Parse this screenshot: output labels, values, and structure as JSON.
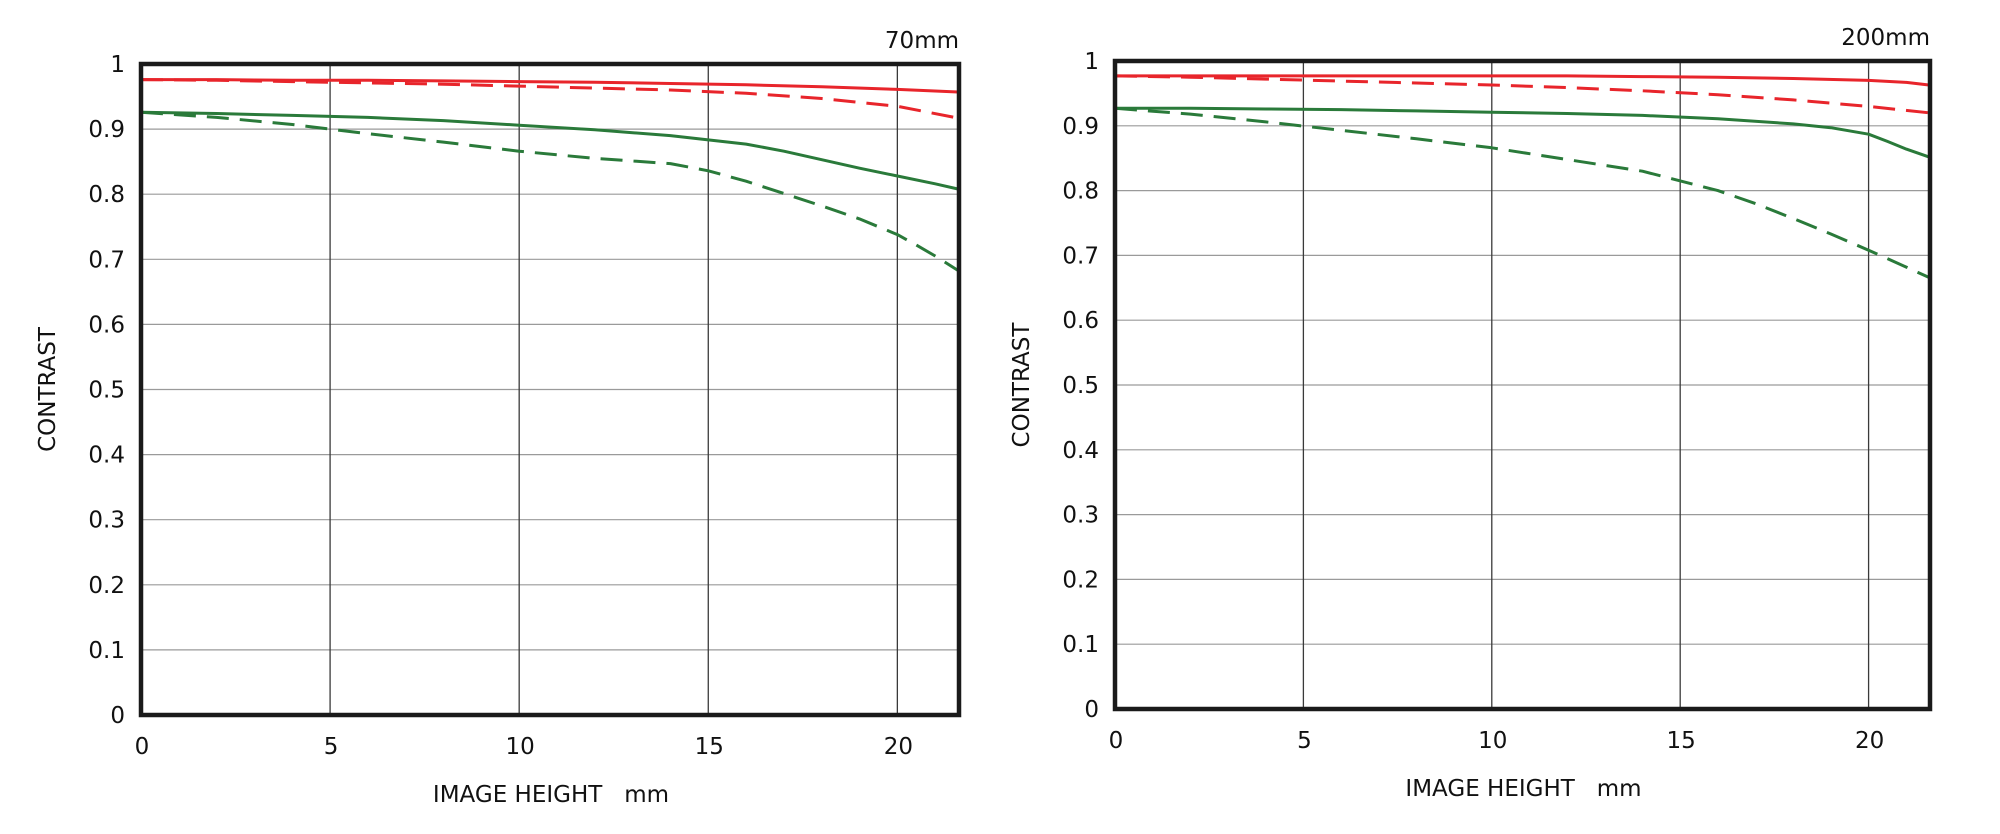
{
  "chart_data": [
    {
      "type": "line",
      "title": "70mm",
      "xlabel": "IMAGE HEIGHT   mm",
      "ylabel": "CONTRAST",
      "xlim": [
        0,
        21.63
      ],
      "ylim": [
        0,
        1
      ],
      "x_ticks": [
        "0",
        "5",
        "10",
        "15",
        "20"
      ],
      "y_ticks": [
        "0",
        "0.1",
        "0.2",
        "0.3",
        "0.4",
        "0.5",
        "0.6",
        "0.7",
        "0.8",
        "0.9",
        "1"
      ],
      "grid": true,
      "series": [
        {
          "color": "#e8252b",
          "style": "solid",
          "x": [
            0,
            2,
            4,
            6,
            8,
            10,
            12,
            14,
            16,
            18,
            20,
            21.6
          ],
          "y": [
            0.976,
            0.976,
            0.975,
            0.975,
            0.974,
            0.973,
            0.972,
            0.97,
            0.968,
            0.965,
            0.961,
            0.957
          ]
        },
        {
          "color": "#e8252b",
          "style": "dashed",
          "x": [
            0,
            2,
            4,
            6,
            8,
            10,
            12,
            14,
            16,
            18,
            20,
            21.6
          ],
          "y": [
            0.976,
            0.975,
            0.973,
            0.971,
            0.969,
            0.966,
            0.963,
            0.96,
            0.955,
            0.947,
            0.935,
            0.917
          ]
        },
        {
          "color": "#2a7a3a",
          "style": "solid",
          "x": [
            0,
            2,
            4,
            6,
            8,
            10,
            12,
            14,
            16,
            17,
            18,
            19,
            20,
            21,
            21.6
          ],
          "y": [
            0.926,
            0.924,
            0.921,
            0.918,
            0.913,
            0.906,
            0.899,
            0.89,
            0.877,
            0.866,
            0.853,
            0.84,
            0.828,
            0.816,
            0.808
          ]
        },
        {
          "color": "#2a7a3a",
          "style": "dashed",
          "x": [
            0,
            2,
            4,
            6,
            8,
            10,
            12,
            14,
            15,
            16,
            17,
            18,
            19,
            20,
            20.5,
            21,
            21.6
          ],
          "y": [
            0.926,
            0.918,
            0.907,
            0.893,
            0.88,
            0.866,
            0.855,
            0.847,
            0.836,
            0.82,
            0.801,
            0.782,
            0.762,
            0.738,
            0.722,
            0.705,
            0.683
          ]
        }
      ]
    },
    {
      "type": "line",
      "title": "200mm",
      "xlabel": "IMAGE HEIGHT   mm",
      "ylabel": "CONTRAST",
      "xlim": [
        0,
        21.63
      ],
      "ylim": [
        0,
        1
      ],
      "x_ticks": [
        "0",
        "5",
        "10",
        "15",
        "20"
      ],
      "y_ticks": [
        "0",
        "0.1",
        "0.2",
        "0.3",
        "0.4",
        "0.5",
        "0.6",
        "0.7",
        "0.8",
        "0.9",
        "1"
      ],
      "grid": true,
      "series": [
        {
          "color": "#e8252b",
          "style": "solid",
          "x": [
            0,
            2,
            4,
            6,
            8,
            10,
            12,
            14,
            16,
            18,
            20,
            21,
            21.6
          ],
          "y": [
            0.977,
            0.977,
            0.977,
            0.977,
            0.977,
            0.977,
            0.977,
            0.976,
            0.975,
            0.973,
            0.97,
            0.967,
            0.963
          ]
        },
        {
          "color": "#e8252b",
          "style": "dashed",
          "x": [
            0,
            2,
            4,
            6,
            8,
            10,
            12,
            14,
            16,
            18,
            20,
            21.6
          ],
          "y": [
            0.977,
            0.975,
            0.972,
            0.969,
            0.966,
            0.963,
            0.959,
            0.954,
            0.948,
            0.94,
            0.93,
            0.92
          ]
        },
        {
          "color": "#2a7a3a",
          "style": "solid",
          "x": [
            0,
            2,
            4,
            6,
            8,
            10,
            12,
            14,
            16,
            18,
            19,
            20,
            20.5,
            21,
            21.6
          ],
          "y": [
            0.927,
            0.927,
            0.926,
            0.925,
            0.923,
            0.921,
            0.919,
            0.916,
            0.911,
            0.903,
            0.897,
            0.887,
            0.876,
            0.864,
            0.852
          ]
        },
        {
          "color": "#2a7a3a",
          "style": "dashed",
          "x": [
            0,
            2,
            4,
            6,
            8,
            10,
            12,
            14,
            16,
            17,
            18,
            19,
            20,
            21,
            21.6
          ],
          "y": [
            0.927,
            0.918,
            0.906,
            0.893,
            0.88,
            0.866,
            0.848,
            0.83,
            0.8,
            0.78,
            0.757,
            0.733,
            0.708,
            0.682,
            0.666
          ]
        }
      ]
    }
  ]
}
